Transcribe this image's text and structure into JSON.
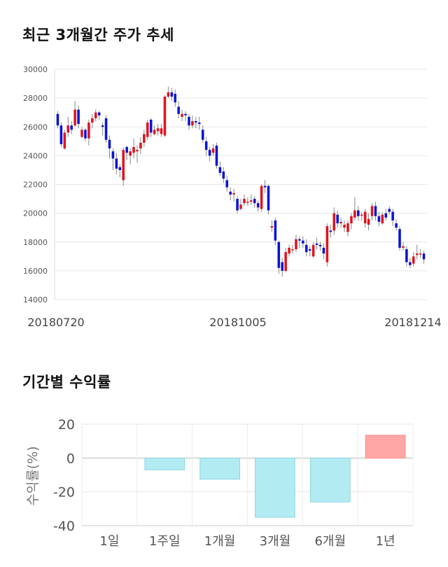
{
  "candle_section": {
    "title": "최근 3개월간 주가 추세"
  },
  "returns_section": {
    "title": "기간별 수익률"
  },
  "chart_data": [
    {
      "type": "candlestick",
      "title": "최근 3개월간 주가 추세",
      "ylim": [
        14000,
        30000
      ],
      "y_ticks": [
        14000,
        16000,
        18000,
        20000,
        22000,
        24000,
        26000,
        28000,
        30000
      ],
      "x_tick_labels": [
        "20180720",
        "20181005",
        "20181214"
      ],
      "grid": true,
      "colors": {
        "up": "#e0141e",
        "down": "#0a14d2",
        "wick": "#888888"
      },
      "candles": [
        [
          26900,
          26100,
          27100,
          25900
        ],
        [
          26100,
          24800,
          26300,
          24600
        ],
        [
          24500,
          25600,
          25800,
          24400
        ],
        [
          25600,
          26100,
          26700,
          25300
        ],
        [
          26100,
          25800,
          26400,
          25500
        ],
        [
          26100,
          27200,
          27800,
          26000
        ],
        [
          27200,
          26200,
          27500,
          25900
        ],
        [
          25300,
          25800,
          26000,
          25200
        ],
        [
          25800,
          25200,
          25900,
          25000
        ],
        [
          25200,
          26300,
          26500,
          24700
        ],
        [
          26300,
          26600,
          26900,
          25900
        ],
        [
          26600,
          27000,
          27200,
          26400
        ],
        [
          27000,
          26800,
          27100,
          26500
        ],
        [
          26100,
          26000,
          26300,
          25400
        ],
        [
          26600,
          25100,
          26800,
          24900
        ],
        [
          25100,
          24500,
          25400,
          23800
        ],
        [
          24300,
          23800,
          24500,
          23000
        ],
        [
          23800,
          23100,
          24200,
          22700
        ],
        [
          23200,
          23000,
          23400,
          22500
        ],
        [
          22300,
          24400,
          24600,
          21900
        ],
        [
          24600,
          24200,
          24700,
          23700
        ],
        [
          24000,
          24300,
          24500,
          23400
        ],
        [
          24200,
          24600,
          25200,
          23800
        ],
        [
          24300,
          24400,
          24700,
          23500
        ],
        [
          24500,
          24900,
          25300,
          24100
        ],
        [
          24900,
          25500,
          25800,
          24600
        ],
        [
          25300,
          26300,
          26500,
          25100
        ],
        [
          26500,
          25600,
          26600,
          25300
        ],
        [
          25500,
          25800,
          26100,
          25400
        ],
        [
          25700,
          25900,
          26200,
          25400
        ],
        [
          25500,
          25900,
          26200,
          25300
        ],
        [
          25400,
          28100,
          28200,
          25300
        ],
        [
          28100,
          28400,
          28800,
          28000
        ],
        [
          28400,
          28100,
          28700,
          27800
        ],
        [
          28300,
          27700,
          28600,
          27400
        ],
        [
          27400,
          26900,
          27800,
          26600
        ],
        [
          26700,
          26900,
          27200,
          26400
        ],
        [
          26900,
          26800,
          27100,
          26400
        ],
        [
          26700,
          26100,
          26900,
          25800
        ],
        [
          26100,
          26400,
          26800,
          25900
        ],
        [
          26400,
          26300,
          26700,
          25900
        ],
        [
          26300,
          26200,
          26700,
          25800
        ],
        [
          25800,
          25100,
          26100,
          24900
        ],
        [
          25000,
          24400,
          25300,
          24000
        ],
        [
          24400,
          24000,
          24600,
          23600
        ],
        [
          24200,
          24500,
          24800,
          24000
        ],
        [
          24700,
          23300,
          24900,
          23100
        ],
        [
          23200,
          22800,
          23600,
          22600
        ],
        [
          22900,
          22400,
          23200,
          22100
        ],
        [
          22300,
          21800,
          22600,
          21500
        ],
        [
          21500,
          21300,
          21800,
          20900
        ],
        [
          21300,
          21400,
          21700,
          20800
        ],
        [
          21000,
          20200,
          21200,
          20000
        ],
        [
          20300,
          20600,
          21000,
          20200
        ],
        [
          20700,
          21000,
          21300,
          20500
        ],
        [
          20800,
          20800,
          21100,
          20500
        ],
        [
          20800,
          20900,
          21300,
          20600
        ],
        [
          21000,
          20700,
          21200,
          20400
        ],
        [
          20700,
          20400,
          20900,
          20100
        ],
        [
          20300,
          21900,
          22000,
          20100
        ],
        [
          21900,
          21800,
          22300,
          21400
        ],
        [
          21900,
          20200,
          22000,
          19900
        ],
        [
          19000,
          19100,
          19500,
          18700
        ],
        [
          19500,
          18100,
          19700,
          17800
        ],
        [
          18000,
          16200,
          18100,
          15800
        ],
        [
          16600,
          16000,
          16900,
          15600
        ],
        [
          16000,
          17300,
          17600,
          15900
        ],
        [
          17200,
          17600,
          17800,
          17000
        ],
        [
          17500,
          17500,
          17800,
          17200
        ],
        [
          17500,
          18200,
          18500,
          17300
        ],
        [
          18200,
          18100,
          18400,
          17600
        ],
        [
          18100,
          17900,
          18400,
          17600
        ],
        [
          17800,
          17300,
          18200,
          17000
        ],
        [
          17500,
          17400,
          17700,
          17000
        ],
        [
          17000,
          17800,
          18000,
          16900
        ],
        [
          17900,
          17800,
          18300,
          17500
        ],
        [
          17800,
          17700,
          18000,
          17400
        ],
        [
          17600,
          17200,
          17900,
          16800
        ],
        [
          16600,
          19100,
          19300,
          16300
        ],
        [
          18800,
          18700,
          19200,
          18300
        ],
        [
          18800,
          20000,
          20400,
          18500
        ],
        [
          19900,
          19300,
          20200,
          19000
        ],
        [
          19300,
          19400,
          19700,
          19000
        ],
        [
          19000,
          19200,
          19500,
          18700
        ],
        [
          18700,
          19300,
          19500,
          18400
        ],
        [
          19300,
          19800,
          20000,
          18900
        ],
        [
          19700,
          20200,
          21100,
          19500
        ],
        [
          20200,
          19800,
          20500,
          19500
        ],
        [
          19900,
          19900,
          20100,
          19500
        ],
        [
          19300,
          20100,
          20300,
          19000
        ],
        [
          19200,
          19600,
          20000,
          18800
        ],
        [
          19800,
          20500,
          20700,
          19500
        ],
        [
          20500,
          19800,
          20800,
          19500
        ],
        [
          19800,
          19400,
          20100,
          19100
        ],
        [
          19300,
          19900,
          20100,
          19200
        ],
        [
          20000,
          19700,
          20300,
          19500
        ],
        [
          20300,
          20100,
          20500,
          19900
        ],
        [
          20100,
          19500,
          20300,
          19100
        ],
        [
          19300,
          19000,
          19600,
          18800
        ],
        [
          18900,
          17600,
          19100,
          17400
        ],
        [
          17600,
          17700,
          18000,
          17400
        ],
        [
          17500,
          16600,
          17700,
          16300
        ],
        [
          16600,
          16400,
          16900,
          16200
        ],
        [
          16500,
          17000,
          17300,
          16300
        ],
        [
          17100,
          17200,
          17800,
          16800
        ],
        [
          17200,
          17200,
          17500,
          16900
        ],
        [
          17200,
          16800,
          17400,
          16500
        ]
      ]
    },
    {
      "type": "bar",
      "title": "기간별 수익률",
      "ylabel": "수익률(%)",
      "ylim": [
        -40,
        20
      ],
      "y_ticks": [
        -40,
        -20,
        0,
        20
      ],
      "categories": [
        "1일",
        "1주일",
        "1개월",
        "3개월",
        "6개월",
        "1년"
      ],
      "values": [
        0,
        -7,
        -12.5,
        -35,
        -26,
        13.5
      ],
      "grid": true,
      "colors": {
        "positive_fill": "#ffa6a6",
        "positive_stroke": "#ff8e8e",
        "negative_fill": "#b2ebf2",
        "negative_stroke": "#8fd7e2"
      }
    }
  ]
}
